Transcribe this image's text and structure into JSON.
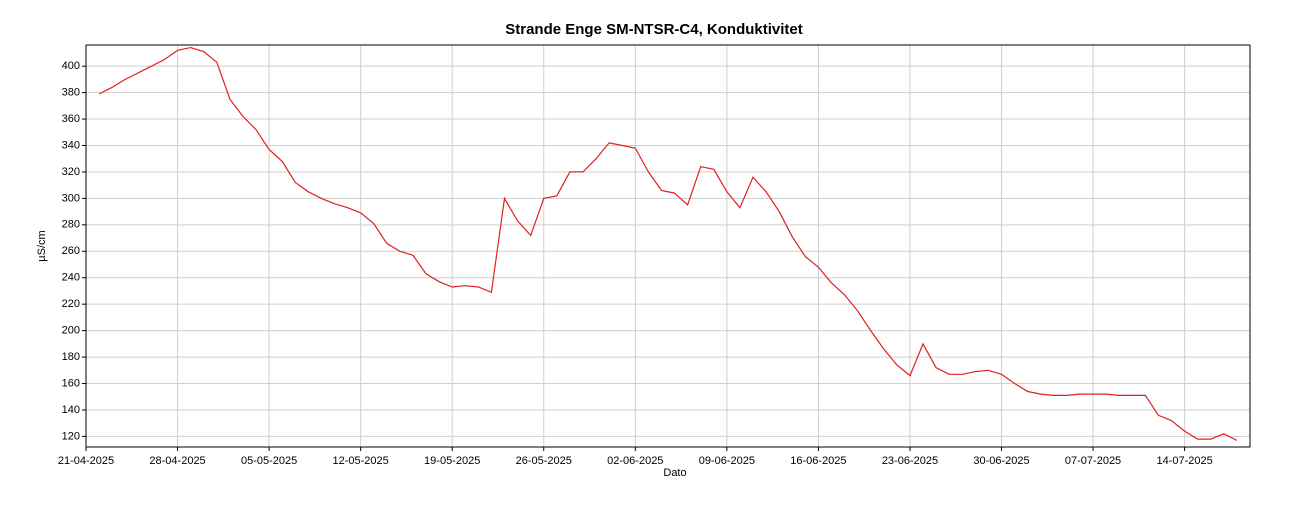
{
  "chart_data": {
    "type": "line",
    "title": "Strande Enge SM-NTSR-C4, Konduktivitet",
    "xlabel": "Dato",
    "ylabel": "µS/cm",
    "x": [
      "2025-04-22",
      "2025-04-23",
      "2025-04-24",
      "2025-04-25",
      "2025-04-26",
      "2025-04-27",
      "2025-04-28",
      "2025-04-29",
      "2025-04-30",
      "2025-05-01",
      "2025-05-02",
      "2025-05-03",
      "2025-05-04",
      "2025-05-05",
      "2025-05-06",
      "2025-05-07",
      "2025-05-08",
      "2025-05-09",
      "2025-05-10",
      "2025-05-11",
      "2025-05-12",
      "2025-05-13",
      "2025-05-14",
      "2025-05-15",
      "2025-05-16",
      "2025-05-17",
      "2025-05-18",
      "2025-05-19",
      "2025-05-20",
      "2025-05-21",
      "2025-05-22",
      "2025-05-23",
      "2025-05-24",
      "2025-05-25",
      "2025-05-26",
      "2025-05-27",
      "2025-05-28",
      "2025-05-29",
      "2025-05-30",
      "2025-05-31",
      "2025-06-01",
      "2025-06-02",
      "2025-06-03",
      "2025-06-04",
      "2025-06-05",
      "2025-06-06",
      "2025-06-07",
      "2025-06-08",
      "2025-06-09",
      "2025-06-10",
      "2025-06-11",
      "2025-06-12",
      "2025-06-13",
      "2025-06-14",
      "2025-06-15",
      "2025-06-16",
      "2025-06-17",
      "2025-06-18",
      "2025-06-19",
      "2025-06-20",
      "2025-06-21",
      "2025-06-22",
      "2025-06-23",
      "2025-06-24",
      "2025-06-25",
      "2025-06-26",
      "2025-06-27",
      "2025-06-28",
      "2025-06-29",
      "2025-06-30",
      "2025-07-01",
      "2025-07-02",
      "2025-07-03",
      "2025-07-04",
      "2025-07-05",
      "2025-07-06",
      "2025-07-07",
      "2025-07-08",
      "2025-07-09",
      "2025-07-10",
      "2025-07-11",
      "2025-07-12",
      "2025-07-13",
      "2025-07-14",
      "2025-07-15",
      "2025-07-16",
      "2025-07-17",
      "2025-07-18"
    ],
    "series": [
      {
        "name": "Konduktivitet",
        "color": "#e02020",
        "values": [
          379,
          384,
          390,
          395,
          400,
          405,
          412,
          414,
          411,
          403,
          375,
          362,
          352,
          337,
          328,
          312,
          305,
          300,
          296,
          293,
          289,
          281,
          266,
          260,
          257,
          243,
          237,
          233,
          234,
          233,
          229,
          300,
          283,
          272,
          300,
          302,
          320,
          320,
          330,
          342,
          340,
          338,
          320,
          306,
          304,
          295,
          324,
          322,
          305,
          293,
          316,
          305,
          290,
          271,
          256,
          248,
          236,
          227,
          215,
          200,
          186,
          174,
          166,
          190,
          172,
          167,
          167,
          169,
          170,
          167,
          160,
          154,
          152,
          151,
          151,
          152,
          152,
          152,
          151,
          151,
          151,
          136,
          132,
          124,
          118,
          118,
          122,
          117
        ]
      }
    ],
    "xlim": [
      "2025-04-21",
      "2025-07-19"
    ],
    "xticks": [
      {
        "value": "2025-04-21",
        "label": "21-04-2025"
      },
      {
        "value": "2025-04-28",
        "label": "28-04-2025"
      },
      {
        "value": "2025-05-05",
        "label": "05-05-2025"
      },
      {
        "value": "2025-05-12",
        "label": "12-05-2025"
      },
      {
        "value": "2025-05-19",
        "label": "19-05-2025"
      },
      {
        "value": "2025-05-26",
        "label": "26-05-2025"
      },
      {
        "value": "2025-06-02",
        "label": "02-06-2025"
      },
      {
        "value": "2025-06-09",
        "label": "09-06-2025"
      },
      {
        "value": "2025-06-16",
        "label": "16-06-2025"
      },
      {
        "value": "2025-06-23",
        "label": "23-06-2025"
      },
      {
        "value": "2025-06-30",
        "label": "30-06-2025"
      },
      {
        "value": "2025-07-07",
        "label": "07-07-2025"
      },
      {
        "value": "2025-07-14",
        "label": "14-07-2025"
      }
    ],
    "ylim": [
      112,
      416
    ],
    "yticks": [
      120,
      140,
      160,
      180,
      200,
      220,
      240,
      260,
      280,
      300,
      320,
      340,
      360,
      380,
      400
    ],
    "grid": true
  }
}
